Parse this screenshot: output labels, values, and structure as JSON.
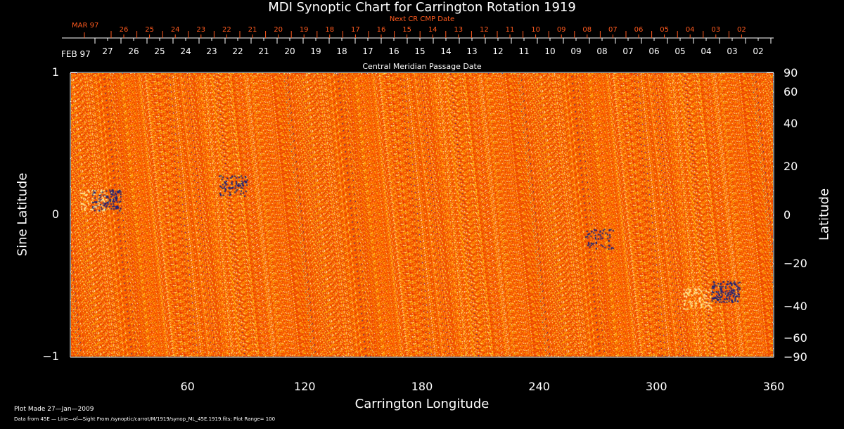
{
  "chart_data": {
    "type": "heatmap",
    "title": "MDI Synoptic Chart for Carrington Rotation 1919",
    "xlabel": "Carrington Longitude",
    "ylabel": "Sine Latitude",
    "y2label": "Latitude",
    "xlim": [
      0,
      360
    ],
    "ylim": [
      -1,
      1
    ],
    "x_ticks": [
      "60",
      "120",
      "180",
      "240",
      "300",
      "360"
    ],
    "y_ticks": [
      "1",
      "0",
      "−1"
    ],
    "y2_ticks": [
      "90",
      "60",
      "40",
      "20",
      "0",
      "−20",
      "−40",
      "−60",
      "−90"
    ],
    "y2_values": [
      90,
      60,
      40,
      20,
      0,
      -20,
      -40,
      -60,
      -90
    ],
    "top_axis_label": "Central Meridian Passage Date",
    "top_month": "FEB 97",
    "top_dates": [
      "27",
      "26",
      "25",
      "24",
      "23",
      "22",
      "21",
      "20",
      "19",
      "18",
      "17",
      "16",
      "15",
      "14",
      "13",
      "12",
      "11",
      "10",
      "09",
      "08",
      "07",
      "06",
      "05",
      "04",
      "03",
      "02"
    ],
    "next_label": "Next CR CMP Date",
    "next_month": "MAR 97",
    "next_dates": [
      "26",
      "25",
      "24",
      "23",
      "22",
      "21",
      "20",
      "19",
      "18",
      "17",
      "16",
      "15",
      "14",
      "13",
      "12",
      "11",
      "10",
      "09",
      "08",
      "07",
      "06",
      "05",
      "04",
      "03",
      "02"
    ],
    "plot_range": 100,
    "colors": {
      "background": "#000000",
      "field": "#ff4a00",
      "positive": "#ffee88",
      "negative": "#1a1aa0",
      "next_axis": "#ff5a1e"
    }
  },
  "footer": {
    "made": "Plot Made 27—Jan—2009",
    "source": "Data from 45E — Line—of—Sight From /synoptic/carrot/M/1919/synop_ML_45E.1919.fits; Plot Range=  100"
  }
}
